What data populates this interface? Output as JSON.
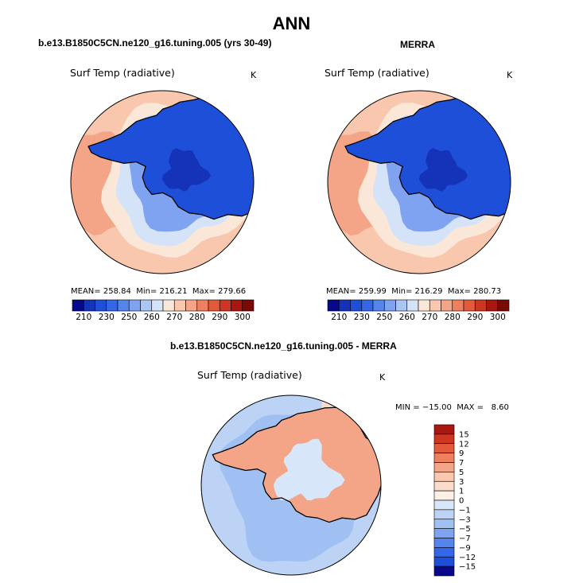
{
  "title": "ANN",
  "panels": [
    {
      "header": "b.e13.B1850C5CN.ne120_g16.tuning.005 (yrs 30-49)",
      "field_label": "Surf Temp (radiative)",
      "units": "K",
      "stats": {
        "mean_label": "MEAN=",
        "mean": "258.84",
        "min_label": "Min=",
        "min": "216.21",
        "max_label": "Max=",
        "max": "279.66"
      }
    },
    {
      "header": "MERRA",
      "field_label": "Surf Temp (radiative)",
      "units": "K",
      "stats": {
        "mean_label": "MEAN=",
        "mean": "259.99",
        "min_label": "Min=",
        "min": "216.29",
        "max_label": "Max=",
        "max": "280.73"
      }
    },
    {
      "header": "b.e13.B1850C5CN.ne120_g16.tuning.005 - MERRA",
      "field_label": "Surf Temp (radiative)",
      "units": "K",
      "stats": {
        "min_label": "MIN =",
        "min": "−15.00",
        "max_label": "MAX =",
        "max": "8.60"
      }
    }
  ],
  "chart_data": [
    {
      "type": "heatmap",
      "projection": "south-polar-stereographic",
      "title": "Surf Temp (radiative)",
      "units": "K",
      "mean": 258.84,
      "min": 216.21,
      "max": 279.66,
      "colorbar": {
        "orientation": "horizontal",
        "ticks": [
          210,
          230,
          250,
          260,
          270,
          280,
          290,
          300
        ],
        "colors": [
          "#08088a",
          "#1533b8",
          "#1e4fd8",
          "#3466e8",
          "#5584ec",
          "#7fa3f0",
          "#aac4f4",
          "#d4e3f8",
          "#fbe7d8",
          "#f8c7ad",
          "#f4a587",
          "#ee7f5f",
          "#e35a3a",
          "#cd3620",
          "#a81810",
          "#7a0a08"
        ]
      },
      "levels": [
        {
          "name": "ocean",
          "value": 271,
          "color": "#f8c7ad"
        },
        {
          "name": "outer_ocean",
          "value": 280,
          "color": "#f4a587"
        },
        {
          "name": "sea_ice",
          "value": 266,
          "color": "#fbe7d8"
        },
        {
          "name": "ice_edge",
          "value": 262,
          "color": "#d4e3f8"
        },
        {
          "name": "coast",
          "value": 250,
          "color": "#7fa3f0"
        },
        {
          "name": "ice_sheet",
          "value": 235,
          "color": "#1e4fd8"
        },
        {
          "name": "plateau",
          "value": 222,
          "color": "#1533b8"
        }
      ]
    },
    {
      "type": "heatmap",
      "projection": "south-polar-stereographic",
      "title": "Surf Temp (radiative)",
      "units": "K",
      "mean": 259.99,
      "min": 216.29,
      "max": 280.73,
      "colorbar": {
        "orientation": "horizontal",
        "ticks": [
          210,
          230,
          250,
          260,
          270,
          280,
          290,
          300
        ],
        "colors": [
          "#08088a",
          "#1533b8",
          "#1e4fd8",
          "#3466e8",
          "#5584ec",
          "#7fa3f0",
          "#aac4f4",
          "#d4e3f8",
          "#fbe7d8",
          "#f8c7ad",
          "#f4a587",
          "#ee7f5f",
          "#e35a3a",
          "#cd3620",
          "#a81810",
          "#7a0a08"
        ]
      },
      "levels": [
        {
          "name": "ocean",
          "value": 271,
          "color": "#f8c7ad"
        },
        {
          "name": "outer_ocean",
          "value": 281,
          "color": "#f4a587"
        },
        {
          "name": "sea_ice",
          "value": 266,
          "color": "#fbe7d8"
        },
        {
          "name": "ice_edge",
          "value": 262,
          "color": "#d4e3f8"
        },
        {
          "name": "coast",
          "value": 250,
          "color": "#7fa3f0"
        },
        {
          "name": "ice_sheet",
          "value": 235,
          "color": "#1e4fd8"
        },
        {
          "name": "plateau",
          "value": 222,
          "color": "#1533b8"
        }
      ]
    },
    {
      "type": "heatmap",
      "projection": "south-polar-stereographic",
      "title": "Surf Temp (radiative)",
      "units": "K",
      "min": -15.0,
      "max": 8.6,
      "colorbar": {
        "orientation": "vertical",
        "ticks": [
          "15",
          "12",
          "9",
          "7",
          "5",
          "3",
          "1",
          "0",
          "−1",
          "−3",
          "−5",
          "−7",
          "−9",
          "−12",
          "−15"
        ],
        "colors": [
          "#a81810",
          "#cd3620",
          "#e35a3a",
          "#ee7f5f",
          "#f4a587",
          "#f8c7ad",
          "#fbdccb",
          "#fdf0e6",
          "#d7e6f8",
          "#bcd3f5",
          "#a0bff2",
          "#7fa3f0",
          "#5584ec",
          "#3466e8",
          "#1e4fd8",
          "#08088a"
        ]
      },
      "levels": [
        {
          "name": "ocean",
          "value": -2,
          "color": "#bcd3f5"
        },
        {
          "name": "ice_edge",
          "value": -4,
          "color": "#a0bff2"
        },
        {
          "name": "warm_patch",
          "value": 1,
          "color": "#fbdccb"
        },
        {
          "name": "ice_sheet",
          "value": 3,
          "color": "#f4a587"
        },
        {
          "name": "interior",
          "value": 0,
          "color": "#d7e6f8"
        }
      ]
    }
  ]
}
